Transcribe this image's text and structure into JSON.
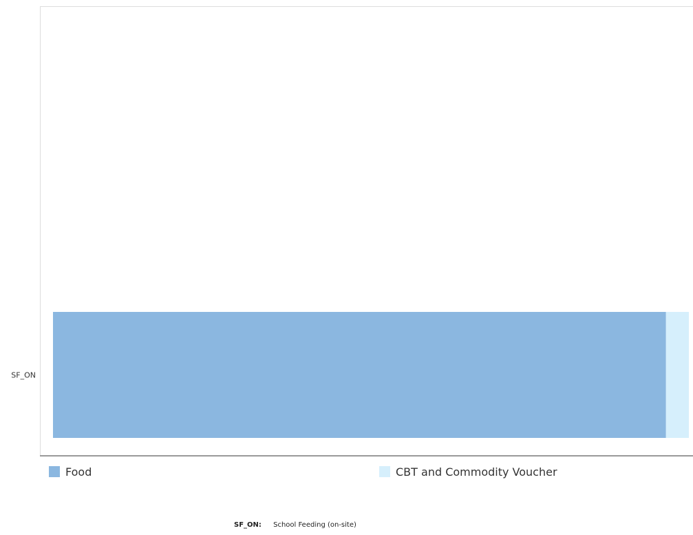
{
  "chart_data": {
    "type": "bar",
    "orientation": "horizontal",
    "stacked": true,
    "categories": [
      "SF_ON"
    ],
    "series": [
      {
        "name": "Food",
        "values": [
          96.4
        ],
        "color": "#8bb7e0"
      },
      {
        "name": "CBT and Commodity Voucher",
        "values": [
          3.6
        ],
        "color": "#d6effc"
      }
    ],
    "xlim": [
      0,
      100
    ],
    "grid": false,
    "legend_position": "bottom"
  },
  "footnote": {
    "code": "SF_ON:",
    "description": "School Feeding (on-site)"
  }
}
